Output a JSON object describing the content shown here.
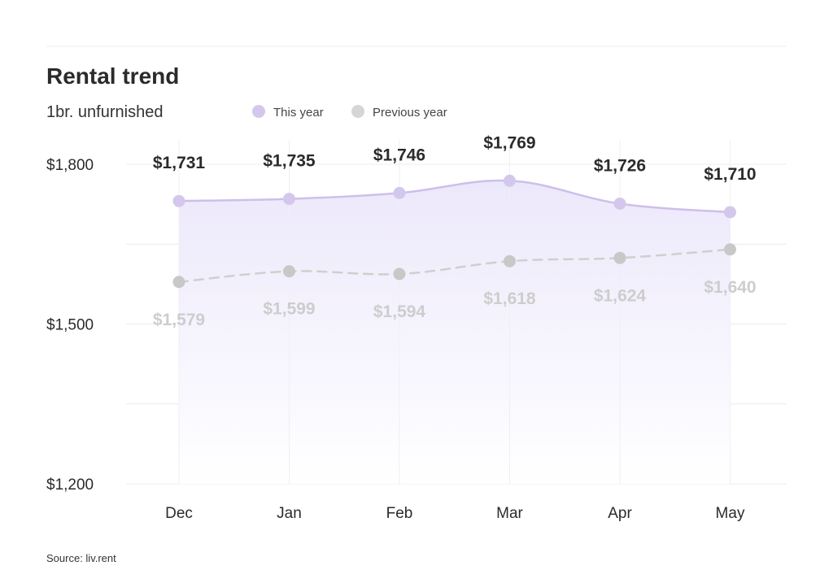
{
  "colors": {
    "this_year": "#d3c8ec",
    "this_year_line": "#cdbfea",
    "previous_year": "#c8c8c8",
    "previous_year_line": "#cfcfcf",
    "grid": "#ececec",
    "fill_top": "#ece8fb",
    "fill_bottom": "#ffffff"
  },
  "chart_data": {
    "type": "line",
    "title": "Rental trend",
    "subtitle": "1br. unfurnished",
    "categories": [
      "Dec",
      "Jan",
      "Feb",
      "Mar",
      "Apr",
      "May"
    ],
    "series": [
      {
        "name": "This year",
        "values": [
          1731,
          1735,
          1746,
          1769,
          1726,
          1710
        ],
        "labels": [
          "$1,731",
          "$1,735",
          "$1,746",
          "$1,769",
          "$1,726",
          "$1,710"
        ],
        "style": "solid-area"
      },
      {
        "name": "Previous year",
        "values": [
          1579,
          1599,
          1594,
          1618,
          1624,
          1640
        ],
        "labels": [
          "$1,579",
          "$1,599",
          "$1,594",
          "$1,618",
          "$1,624",
          "$1,640"
        ],
        "style": "dashed"
      }
    ],
    "ylim": [
      1200,
      1850
    ],
    "yticks": [
      1200,
      1500,
      1800
    ],
    "ytick_labels": [
      "$1,200",
      "$1,500",
      "$1,800"
    ],
    "gridlines": [
      1200,
      1350,
      1500,
      1650,
      1800
    ],
    "legend_position": "top",
    "xlabel": "",
    "ylabel": ""
  },
  "source": "Source: liv.rent"
}
